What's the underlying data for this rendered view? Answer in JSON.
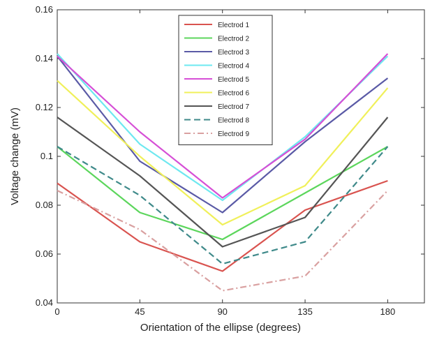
{
  "chart_data": {
    "type": "line",
    "title": "",
    "xlabel": "Orientation of the ellipse (degrees)",
    "ylabel": "Voltage change  (mV)",
    "x": [
      0,
      45,
      90,
      135,
      180
    ],
    "xlim": [
      0,
      200
    ],
    "ylim": [
      0.04,
      0.16
    ],
    "xticks": [
      0,
      45,
      90,
      135,
      180
    ],
    "yticks": [
      0.04,
      0.06,
      0.08,
      0.1,
      0.12,
      0.14,
      0.16
    ],
    "xtick_labels": [
      "0",
      "45",
      "90",
      "135",
      "180"
    ],
    "ytick_labels": [
      "0.04",
      "0.06",
      "0.08",
      "0.1",
      "0.12",
      "0.14",
      "0.16"
    ],
    "grid": false,
    "legend_position": "top-center",
    "series": [
      {
        "name": "Electrod 1",
        "color": "#d9534f",
        "dash": "solid",
        "values": [
          0.089,
          0.065,
          0.053,
          0.078,
          0.09
        ]
      },
      {
        "name": "Electrod 2",
        "color": "#5cd65c",
        "dash": "solid",
        "values": [
          0.104,
          0.077,
          0.066,
          0.085,
          0.104
        ]
      },
      {
        "name": "Electrod 3",
        "color": "#5a5aa6",
        "dash": "solid",
        "values": [
          0.141,
          0.098,
          0.077,
          0.106,
          0.132
        ]
      },
      {
        "name": "Electrod 4",
        "color": "#6ee8f0",
        "dash": "solid",
        "values": [
          0.142,
          0.105,
          0.082,
          0.108,
          0.141
        ]
      },
      {
        "name": "Electrod 5",
        "color": "#d64fd6",
        "dash": "solid",
        "values": [
          0.141,
          0.11,
          0.083,
          0.107,
          0.142
        ]
      },
      {
        "name": "Electrod 6",
        "color": "#f0f05a",
        "dash": "solid",
        "values": [
          0.131,
          0.1,
          0.072,
          0.088,
          0.128
        ]
      },
      {
        "name": "Electrod 7",
        "color": "#555555",
        "dash": "solid",
        "values": [
          0.116,
          0.092,
          0.063,
          0.075,
          0.116
        ]
      },
      {
        "name": "Electrod 8",
        "color": "#3f8a8a",
        "dash": "dashed",
        "values": [
          0.104,
          0.084,
          0.056,
          0.065,
          0.104
        ]
      },
      {
        "name": "Electrod 9",
        "color": "#d9a0a0",
        "dash": "dashdot",
        "values": [
          0.086,
          0.07,
          0.045,
          0.051,
          0.086
        ]
      }
    ]
  }
}
